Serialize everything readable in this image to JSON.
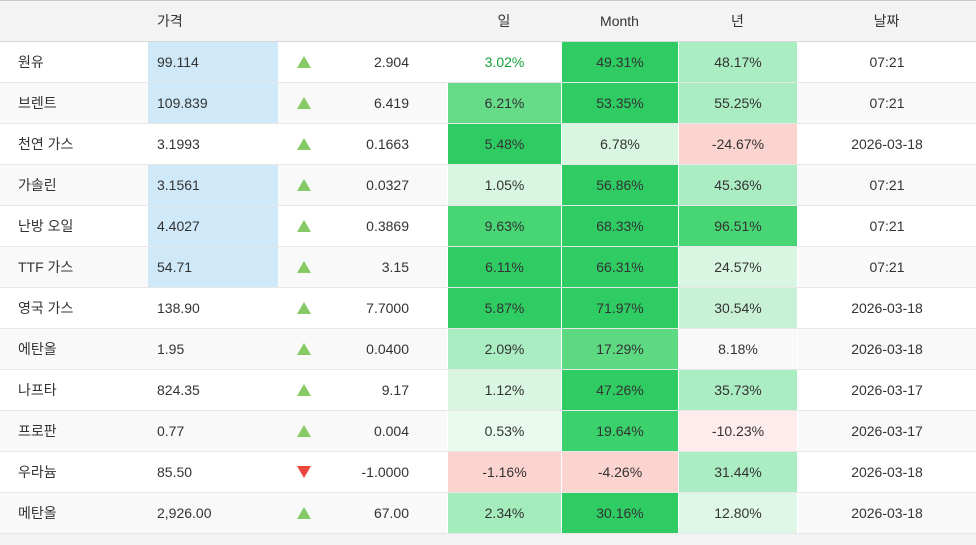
{
  "colors": {
    "accent_price_highlight": "#cfe9f8",
    "arrow_up": "#85ca65",
    "arrow_down": "#e8463a",
    "header_bg": "#f3f3f3",
    "stripe_bg": "#f9f9f9",
    "positive_text": "#12a23b"
  },
  "header": {
    "name": "",
    "price": "가격",
    "change": "",
    "day": "일",
    "month": "Month",
    "year": "년",
    "date": "날짜"
  },
  "rows": [
    {
      "name": "원유",
      "price": "99.114",
      "price_highlighted": true,
      "direction": "up",
      "change": "2.904",
      "day": {
        "text": "3.02%",
        "bg": "",
        "fg": "#12a23b"
      },
      "month": {
        "text": "49.31%",
        "bg": "#2ecc63"
      },
      "year": {
        "text": "48.17%",
        "bg": "#abedc2"
      },
      "date": "07:21"
    },
    {
      "name": "브렌트",
      "price": "109.839",
      "price_highlighted": true,
      "direction": "up",
      "change": "6.419",
      "day": {
        "text": "6.21%",
        "bg": "#66db88"
      },
      "month": {
        "text": "53.35%",
        "bg": "#2ecc63"
      },
      "year": {
        "text": "55.25%",
        "bg": "#abedc2"
      },
      "date": "07:21"
    },
    {
      "name": "천연 가스",
      "price": "3.1993",
      "price_highlighted": false,
      "direction": "up",
      "change": "0.1663",
      "day": {
        "text": "5.48%",
        "bg": "#2ecc63"
      },
      "month": {
        "text": "6.78%",
        "bg": "#d9f6e2"
      },
      "year": {
        "text": "-24.67%",
        "bg": "#fbd3cf"
      },
      "date": "2026-03-18"
    },
    {
      "name": "가솔린",
      "price": "3.1561",
      "price_highlighted": true,
      "direction": "up",
      "change": "0.0327",
      "day": {
        "text": "1.05%",
        "bg": "#d9f6e2"
      },
      "month": {
        "text": "56.86%",
        "bg": "#2ecc63"
      },
      "year": {
        "text": "45.36%",
        "bg": "#abedc2"
      },
      "date": "07:21"
    },
    {
      "name": "난방 오일",
      "price": "4.4027",
      "price_highlighted": true,
      "direction": "up",
      "change": "0.3869",
      "day": {
        "text": "9.63%",
        "bg": "#48d573"
      },
      "month": {
        "text": "68.33%",
        "bg": "#2ecc63"
      },
      "year": {
        "text": "96.51%",
        "bg": "#48d573"
      },
      "date": "07:21"
    },
    {
      "name": "TTF 가스",
      "price": "54.71",
      "price_highlighted": true,
      "direction": "up",
      "change": "3.15",
      "day": {
        "text": "6.11%",
        "bg": "#2ecc63"
      },
      "month": {
        "text": "66.31%",
        "bg": "#2ecc63"
      },
      "year": {
        "text": "24.57%",
        "bg": "#d9f6e2"
      },
      "date": "07:21"
    },
    {
      "name": "영국 가스",
      "price": "138.90",
      "price_highlighted": false,
      "direction": "up",
      "change": "7.7000",
      "day": {
        "text": "5.87%",
        "bg": "#2ecc63"
      },
      "month": {
        "text": "71.97%",
        "bg": "#2ecc63"
      },
      "year": {
        "text": "30.54%",
        "bg": "#c8f1d6"
      },
      "date": "2026-03-18"
    },
    {
      "name": "에탄올",
      "price": "1.95",
      "price_highlighted": false,
      "direction": "up",
      "change": "0.0400",
      "day": {
        "text": "2.09%",
        "bg": "#abedc2"
      },
      "month": {
        "text": "17.29%",
        "bg": "#5cd981"
      },
      "year": {
        "text": "8.18%",
        "bg": ""
      },
      "date": "2026-03-18"
    },
    {
      "name": "나프타",
      "price": "824.35",
      "price_highlighted": false,
      "direction": "up",
      "change": "9.17",
      "day": {
        "text": "1.12%",
        "bg": "#d9f6e2"
      },
      "month": {
        "text": "47.26%",
        "bg": "#2ecc63"
      },
      "year": {
        "text": "35.73%",
        "bg": "#abedc2"
      },
      "date": "2026-03-17"
    },
    {
      "name": "프로판",
      "price": "0.77",
      "price_highlighted": false,
      "direction": "up",
      "change": "0.004",
      "day": {
        "text": "0.53%",
        "bg": "#e9faef"
      },
      "month": {
        "text": "19.64%",
        "bg": "#3bd16c"
      },
      "year": {
        "text": "-10.23%",
        "bg": "#fdeceb"
      },
      "date": "2026-03-17"
    },
    {
      "name": "우라늄",
      "price": "85.50",
      "price_highlighted": false,
      "direction": "down",
      "change": "-1.0000",
      "day": {
        "text": "-1.16%",
        "bg": "#fbd3cf"
      },
      "month": {
        "text": "-4.26%",
        "bg": "#fbd3cf"
      },
      "year": {
        "text": "31.44%",
        "bg": "#abedc2"
      },
      "date": "2026-03-18"
    },
    {
      "name": "메탄올",
      "price": "2,926.00",
      "price_highlighted": false,
      "direction": "up",
      "change": "67.00",
      "day": {
        "text": "2.34%",
        "bg": "#a5ecbc"
      },
      "month": {
        "text": "30.16%",
        "bg": "#2ecc63"
      },
      "year": {
        "text": "12.80%",
        "bg": "#dff7e7"
      },
      "date": "2026-03-18"
    }
  ]
}
